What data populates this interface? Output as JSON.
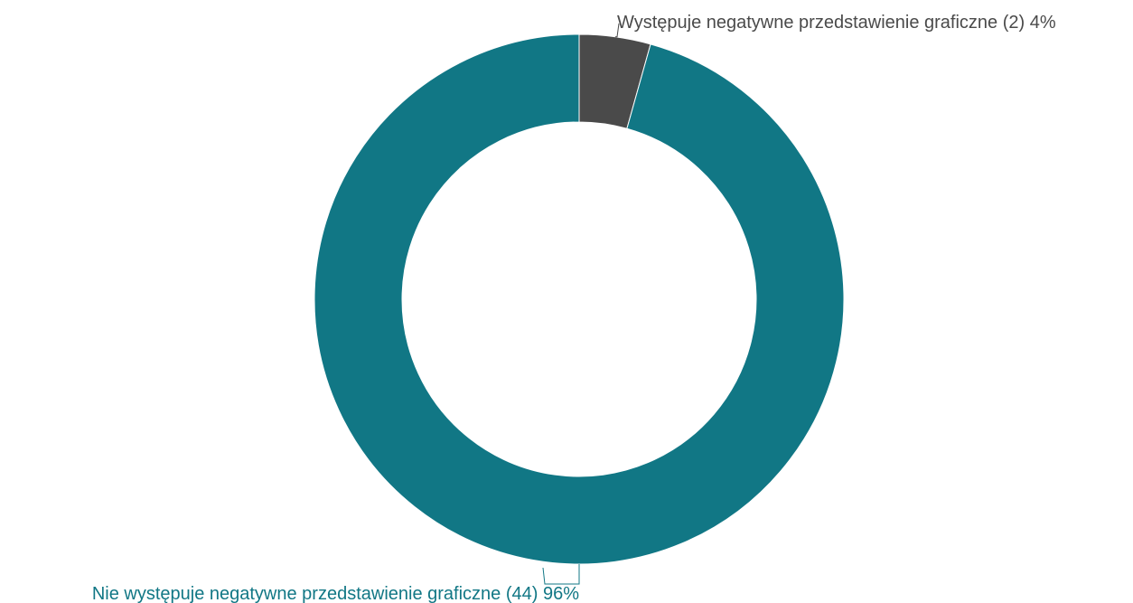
{
  "chart_data": {
    "type": "pie",
    "donut": true,
    "start_angle_deg": 0,
    "direction": "clockwise",
    "legend": "none",
    "slices": [
      {
        "label": "Występuje negatywne przedstawienie graficzne",
        "count": 2,
        "percent": 4,
        "display_text": "Występuje negatywne przedstawienie graficzne (2) 4%",
        "color": "#4a4a4a",
        "label_color": "#4a4a4a"
      },
      {
        "label": "Nie występuje negatywne przedstawienie graficzne",
        "count": 44,
        "percent": 96,
        "display_text": "Nie występuje negatywne przedstawienie graficzne (44) 96%",
        "color": "#117785",
        "label_color": "#117785"
      }
    ]
  }
}
